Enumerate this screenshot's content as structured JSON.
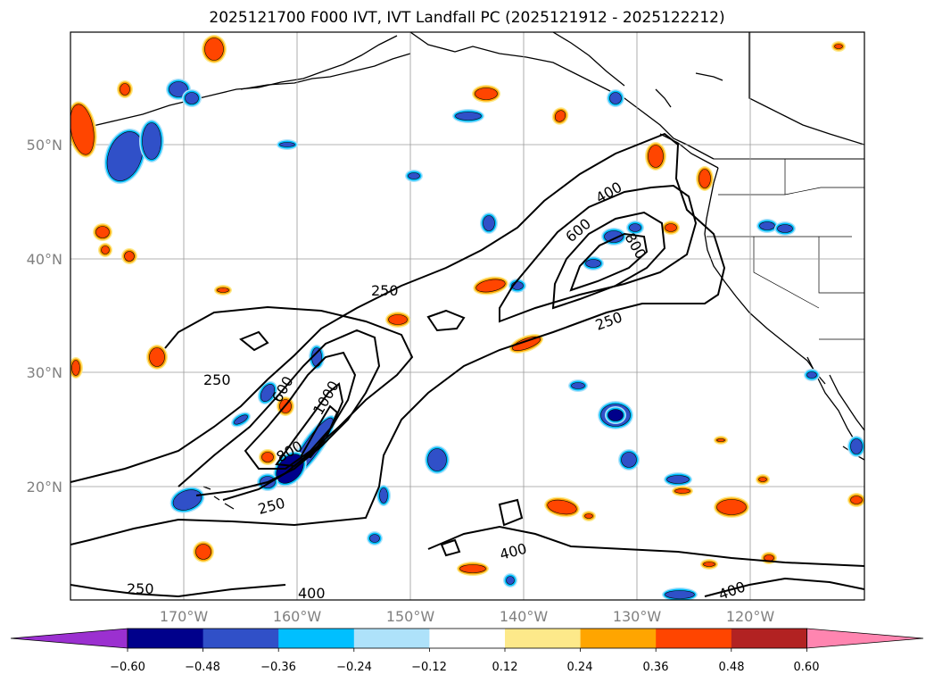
{
  "title": "2025121700 F000 IVT, IVT Landfall PC (2025121912 - 2025122212)",
  "map": {
    "lat_labels": [
      "50°N",
      "40°N",
      "30°N",
      "20°N"
    ],
    "lon_labels": [
      "170°W",
      "160°W",
      "150°W",
      "140°W",
      "130°W",
      "120°W"
    ],
    "contour_labels": [
      "250",
      "250",
      "250",
      "250",
      "250",
      "400",
      "400",
      "400",
      "400",
      "600",
      "600",
      "800",
      "800",
      "1000"
    ]
  },
  "colorbar": {
    "ticks": [
      "−0.60",
      "−0.48",
      "−0.36",
      "−0.24",
      "−0.12",
      "0.12",
      "0.24",
      "0.36",
      "0.48",
      "0.60"
    ],
    "colors": [
      "#9b30d0",
      "#00008b",
      "#3050c8",
      "#00bfff",
      "#aee2fa",
      "#ffffff",
      "#fde98a",
      "#ffa500",
      "#ff4500",
      "#b22222",
      "#ff85b0"
    ]
  },
  "colors": {
    "neg_dark": "#00008b",
    "neg_mid": "#3050c8",
    "neg_light": "#00bfff",
    "neg_pale": "#aee2fa",
    "pos_pale": "#fde98a",
    "pos_light": "#ffa500",
    "pos_mid": "#ff4500"
  }
}
